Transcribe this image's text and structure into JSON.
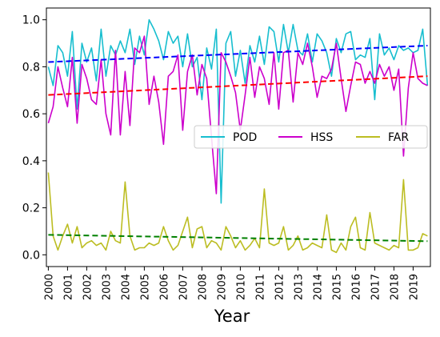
{
  "chart_data": {
    "type": "line",
    "title": "",
    "xlabel": "Year",
    "ylabel": "",
    "xlim": [
      1999.9,
      2019.9
    ],
    "ylim": [
      -0.05,
      1.05
    ],
    "x_ticks": [
      2000,
      2001,
      2002,
      2003,
      2004,
      2005,
      2006,
      2007,
      2008,
      2009,
      2010,
      2011,
      2012,
      2013,
      2014,
      2015,
      2016,
      2017,
      2018,
      2019
    ],
    "y_ticks": [
      0.0,
      0.2,
      0.4,
      0.6,
      0.8,
      1.0
    ],
    "y_tick_labels": [
      "0.0",
      "0.2",
      "0.4",
      "0.6",
      "0.8",
      "1.0"
    ],
    "grid": false,
    "legend_position": "middle-right",
    "series": [
      {
        "name": "POD",
        "color": "#17becf",
        "x_start": 2000,
        "x_step": 0.25,
        "values": [
          0.8,
          0.72,
          0.89,
          0.86,
          0.76,
          0.95,
          0.62,
          0.9,
          0.82,
          0.88,
          0.74,
          0.96,
          0.76,
          0.89,
          0.85,
          0.91,
          0.86,
          0.96,
          0.81,
          0.93,
          0.85,
          1.0,
          0.96,
          0.91,
          0.83,
          0.95,
          0.9,
          0.93,
          0.8,
          0.94,
          0.8,
          0.84,
          0.66,
          0.88,
          0.79,
          0.96,
          0.22,
          0.9,
          0.95,
          0.76,
          0.87,
          0.73,
          0.89,
          0.82,
          0.93,
          0.81,
          0.97,
          0.95,
          0.82,
          0.98,
          0.86,
          0.98,
          0.87,
          0.85,
          0.94,
          0.82,
          0.94,
          0.91,
          0.86,
          0.76,
          0.92,
          0.86,
          0.94,
          0.95,
          0.83,
          0.85,
          0.84,
          0.92,
          0.66,
          0.94,
          0.85,
          0.88,
          0.83,
          0.89,
          0.87,
          0.88,
          0.86,
          0.87,
          0.96,
          0.72
        ]
      },
      {
        "name": "HSS",
        "color": "#cc00cc",
        "x_start": 2000,
        "x_step": 0.25,
        "values": [
          0.56,
          0.63,
          0.8,
          0.71,
          0.63,
          0.84,
          0.56,
          0.81,
          0.75,
          0.66,
          0.64,
          0.83,
          0.6,
          0.51,
          0.87,
          0.51,
          0.78,
          0.55,
          0.88,
          0.86,
          0.93,
          0.64,
          0.76,
          0.65,
          0.47,
          0.76,
          0.78,
          0.85,
          0.53,
          0.78,
          0.85,
          0.68,
          0.81,
          0.75,
          0.5,
          0.26,
          0.86,
          0.82,
          0.76,
          0.69,
          0.53,
          0.68,
          0.84,
          0.67,
          0.8,
          0.75,
          0.64,
          0.86,
          0.62,
          0.86,
          0.87,
          0.65,
          0.86,
          0.81,
          0.9,
          0.8,
          0.67,
          0.76,
          0.75,
          0.79,
          0.9,
          0.75,
          0.61,
          0.72,
          0.82,
          0.81,
          0.73,
          0.78,
          0.73,
          0.81,
          0.76,
          0.8,
          0.7,
          0.79,
          0.42,
          0.71,
          0.86,
          0.75,
          0.73,
          0.72
        ]
      },
      {
        "name": "FAR",
        "color": "#bcbd22",
        "x_start": 2000,
        "x_step": 0.25,
        "values": [
          0.35,
          0.08,
          0.02,
          0.08,
          0.13,
          0.05,
          0.12,
          0.03,
          0.05,
          0.06,
          0.04,
          0.05,
          0.02,
          0.1,
          0.06,
          0.05,
          0.31,
          0.08,
          0.02,
          0.03,
          0.03,
          0.05,
          0.04,
          0.05,
          0.12,
          0.06,
          0.02,
          0.04,
          0.1,
          0.16,
          0.03,
          0.11,
          0.12,
          0.03,
          0.06,
          0.05,
          0.02,
          0.12,
          0.08,
          0.03,
          0.06,
          0.02,
          0.04,
          0.07,
          0.03,
          0.28,
          0.05,
          0.04,
          0.05,
          0.12,
          0.02,
          0.04,
          0.08,
          0.02,
          0.03,
          0.05,
          0.04,
          0.03,
          0.17,
          0.02,
          0.01,
          0.05,
          0.02,
          0.12,
          0.16,
          0.03,
          0.02,
          0.18,
          0.05,
          0.04,
          0.03,
          0.02,
          0.04,
          0.03,
          0.32,
          0.02,
          0.02,
          0.03,
          0.09,
          0.08
        ]
      }
    ],
    "trend_lines": [
      {
        "series": "POD",
        "color": "#0000ff",
        "x": [
          2000,
          2019.75
        ],
        "y": [
          0.82,
          0.89
        ]
      },
      {
        "series": "HSS",
        "color": "#ff0000",
        "x": [
          2000,
          2019.75
        ],
        "y": [
          0.68,
          0.76
        ]
      },
      {
        "series": "FAR",
        "color": "#008000",
        "x": [
          2000,
          2019.75
        ],
        "y": [
          0.085,
          0.058
        ]
      }
    ]
  }
}
